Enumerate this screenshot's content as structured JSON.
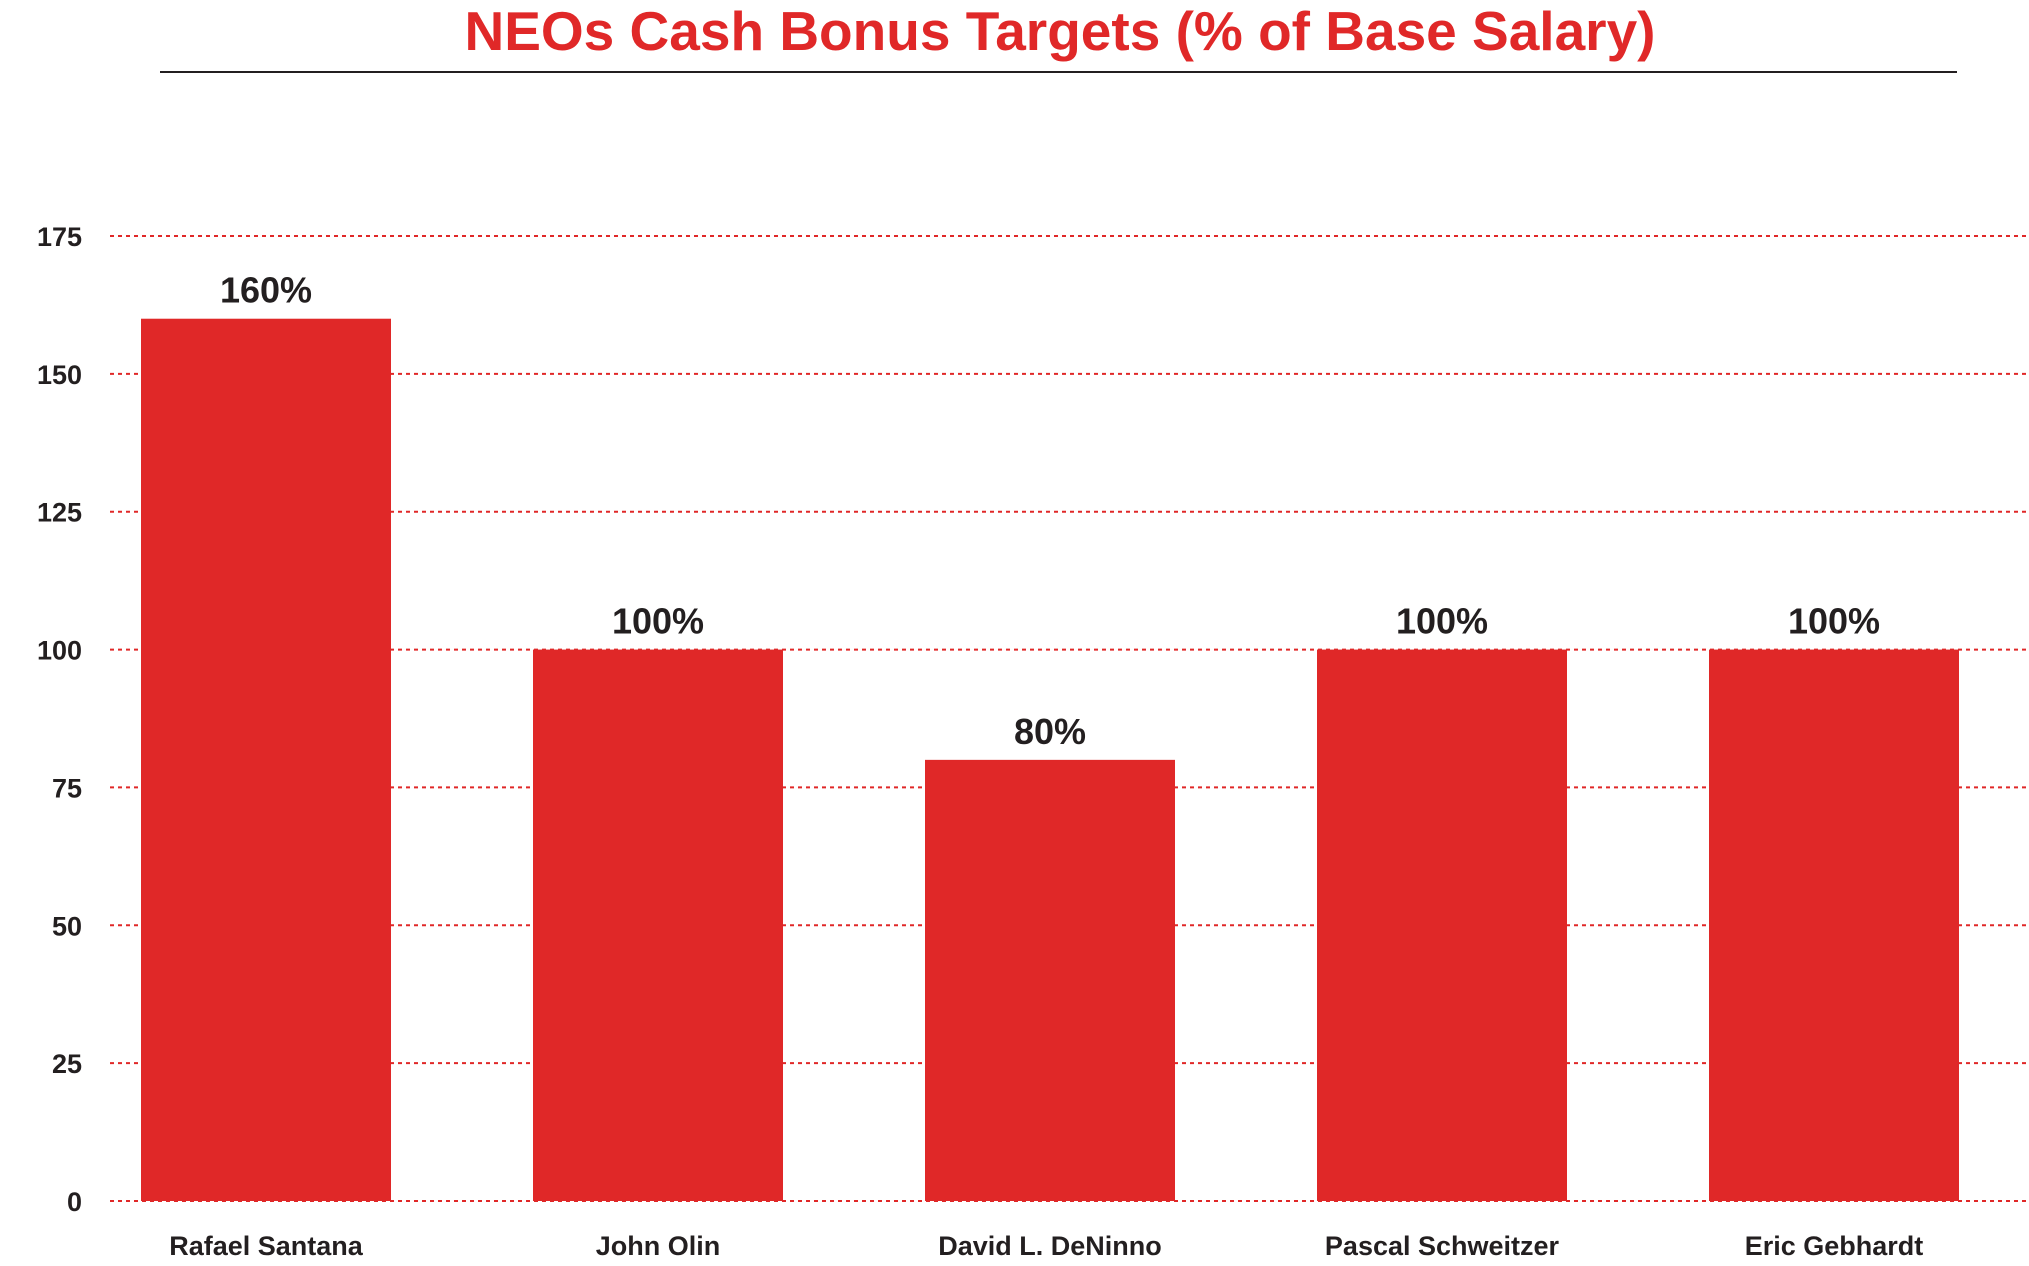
{
  "chart_data": {
    "type": "bar",
    "title": "NEOs Cash Bonus Targets (% of Base Salary)",
    "xlabel": "",
    "ylabel": "",
    "categories": [
      "Rafael Santana",
      "John Olin",
      "David L. DeNinno",
      "Pascal Schweitzer",
      "Eric Gebhardt"
    ],
    "values": [
      160,
      100,
      80,
      100,
      100
    ],
    "data_labels": [
      "160%",
      "100%",
      "80%",
      "100%",
      "100%"
    ],
    "ylim": [
      0,
      175
    ],
    "yticks": [
      0,
      25,
      50,
      75,
      100,
      125,
      150,
      175
    ],
    "grid": true,
    "grid_style": "dotted",
    "legend": "none"
  },
  "colors": {
    "bar": "#e02828",
    "title": "#e02828",
    "grid": "#e02828",
    "text": "#231f20"
  }
}
